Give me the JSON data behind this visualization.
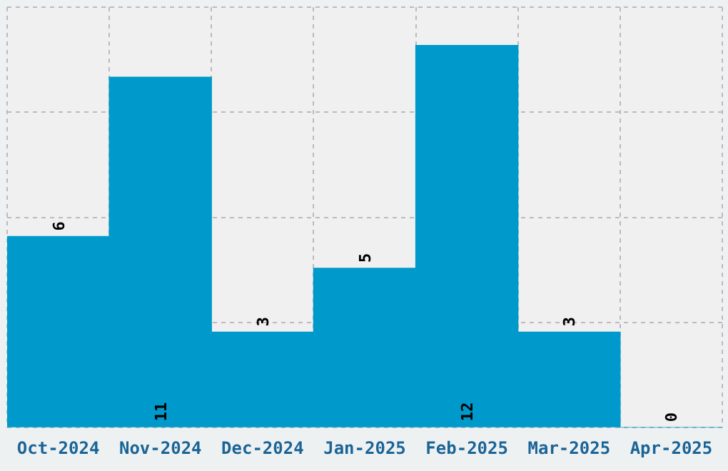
{
  "chart_data": {
    "type": "bar",
    "categories": [
      "Oct-2024",
      "Nov-2024",
      "Dec-2024",
      "Jan-2025",
      "Feb-2025",
      "Mar-2025",
      "Apr-2025"
    ],
    "values": [
      6,
      11,
      3,
      5,
      12,
      3,
      0
    ],
    "color": "#0099cc",
    "ylim": [
      0,
      13.2
    ],
    "yticks": [
      {
        "value": 0,
        "label": null
      },
      {
        "value": 3.3,
        "label": null
      },
      {
        "value": 6.6,
        "label": null
      },
      {
        "value": 9.9,
        "label": null
      },
      {
        "value": 13.2,
        "label": null
      }
    ],
    "tick_labels": "x",
    "grid": true,
    "legend": false,
    "data_labels": true
  }
}
